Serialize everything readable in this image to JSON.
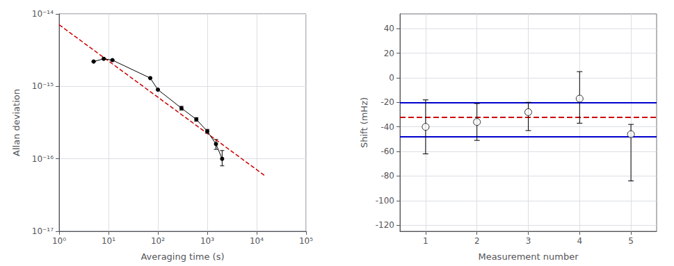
{
  "chart_data": [
    {
      "type": "line",
      "log": true,
      "xlabel": "Averaging time (s)",
      "ylabel": "Allan deviation",
      "xlim": [
        1,
        100000
      ],
      "xticks": [
        {
          "value": 1,
          "label": "10⁰"
        },
        {
          "value": 10,
          "label": "10¹"
        },
        {
          "value": 100,
          "label": "10²"
        },
        {
          "value": 1000,
          "label": "10³"
        },
        {
          "value": 10000,
          "label": "10⁴"
        },
        {
          "value": 100000,
          "label": "10⁵"
        }
      ],
      "ylim": [
        1e-17,
        1e-14
      ],
      "yticks": [
        {
          "value": 1e-17,
          "label": "10⁻¹⁷"
        },
        {
          "value": 1e-16,
          "label": "10⁻¹⁶"
        },
        {
          "value": 1e-15,
          "label": "10⁻¹⁵"
        },
        {
          "value": 1e-14,
          "label": "10⁻¹⁴"
        }
      ],
      "grid": true,
      "series": [
        {
          "type": "line",
          "color": "black",
          "marker": "circle",
          "line_style": "solid",
          "x": [
            5,
            8,
            12,
            70,
            100,
            300,
            600,
            1000,
            1500,
            2000
          ],
          "values": [
            2.2e-15,
            2.4e-15,
            2.3e-15,
            1.3e-15,
            9e-16,
            5e-16,
            3.5e-16,
            2.4e-16,
            1.6e-16,
            1e-16
          ],
          "error_low": [
            0.0,
            0.0,
            0.0,
            0.0,
            0.0,
            3e-17,
            2e-17,
            1.5e-17,
            2.5e-17,
            2e-17
          ],
          "error_high": [
            0.0,
            0.0,
            0.0,
            0.0,
            0.0,
            3e-17,
            2e-17,
            1.5e-17,
            2.5e-17,
            3e-17
          ]
        },
        {
          "type": "line",
          "color": "#cc0000",
          "line_style": "dashed",
          "x": [
            1,
            15000
          ],
          "values": [
            7.079457843841379e-15,
            5.7803531e-17
          ]
        }
      ]
    },
    {
      "type": "scatter",
      "xlabel": "Measurement number",
      "ylabel": "Shift (mHz)",
      "xlim": [
        0.5,
        5.5
      ],
      "xticks": [
        1,
        2,
        3,
        4,
        5
      ],
      "ylim": [
        -125,
        52
      ],
      "yticks": [
        -120,
        -100,
        -80,
        -60,
        -40,
        -20,
        0,
        20,
        40
      ],
      "grid": true,
      "series": [
        {
          "type": "hline",
          "color": "#cc0000",
          "line_style": "dashed",
          "values": [
            -32
          ]
        },
        {
          "type": "hline",
          "color": "#0000cc",
          "line_style": "solid",
          "values": [
            -20
          ]
        },
        {
          "type": "hline",
          "color": "#0000cc",
          "line_style": "solid",
          "values": [
            -48
          ]
        },
        {
          "type": "scatter",
          "color": "white",
          "marker": "circle",
          "x": [
            1,
            2,
            3,
            4,
            5
          ],
          "values": [
            -40,
            -36,
            -28,
            -17,
            -46
          ],
          "error_low": [
            22,
            15,
            15,
            20,
            38
          ],
          "error_high": [
            22,
            15,
            8,
            22,
            8
          ]
        }
      ]
    }
  ]
}
